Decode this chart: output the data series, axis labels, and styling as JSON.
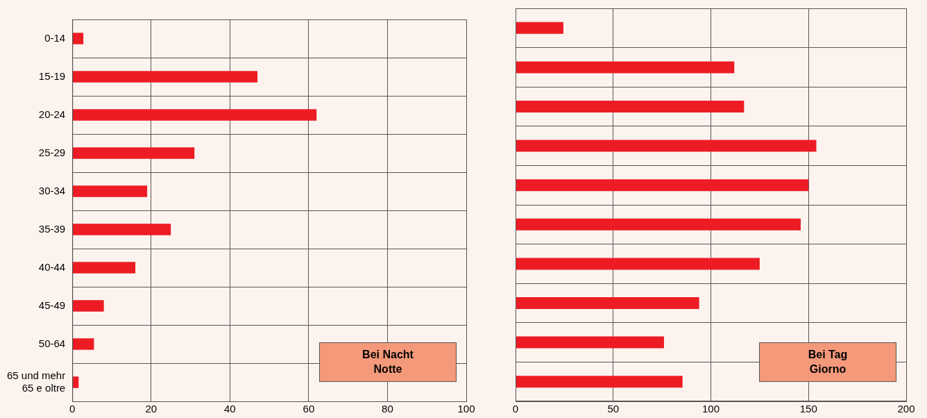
{
  "chart_data": [
    {
      "type": "bar",
      "orientation": "horizontal",
      "categories": [
        "0-14",
        "15-19",
        "20-24",
        "25-29",
        "30-34",
        "35-39",
        "40-44",
        "45-49",
        "50-64",
        "65 und mehr\n65 e oltre"
      ],
      "values": [
        2.8,
        47,
        62,
        31,
        19,
        25,
        16,
        8,
        5.5,
        1.6
      ],
      "color": "#ed1c24",
      "xlim": [
        0,
        100
      ],
      "xticks": [
        0,
        20,
        40,
        60,
        80,
        100
      ],
      "grid": true,
      "annotations": [
        "Bei Nacht\nNotte"
      ]
    },
    {
      "type": "bar",
      "orientation": "horizontal",
      "categories": [
        null,
        null,
        null,
        null,
        null,
        null,
        null,
        null,
        null,
        null
      ],
      "values": [
        24.5,
        112,
        117,
        154,
        150,
        146,
        125,
        94,
        76,
        85.5
      ],
      "color": "#ed1c24",
      "xlim": [
        0,
        200
      ],
      "xticks": [
        0,
        50,
        100,
        150,
        200
      ],
      "grid": true,
      "tick_labels": "x",
      "annotations": [
        "Bei Tag\nGiorno"
      ]
    }
  ]
}
